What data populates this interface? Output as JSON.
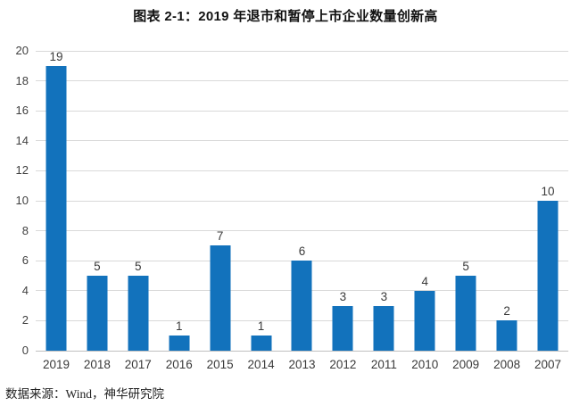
{
  "header": {
    "title": "图表 2-1：2019 年退市和暂停上市企业数量创新高"
  },
  "footer": {
    "source": "数据来源：Wind，神华研究院"
  },
  "chart_data": {
    "type": "bar",
    "title": "图表 2-1：2019 年退市和暂停上市企业数量创新高",
    "categories": [
      "2019",
      "2018",
      "2017",
      "2016",
      "2015",
      "2014",
      "2013",
      "2012",
      "2011",
      "2010",
      "2009",
      "2008",
      "2007"
    ],
    "values": [
      19,
      5,
      5,
      1,
      7,
      1,
      6,
      3,
      3,
      4,
      5,
      2,
      10
    ],
    "data_labels_shown": true,
    "xlabel": "",
    "ylabel": "",
    "ylim": [
      0,
      20
    ],
    "ytick_step": 2,
    "yticks": [
      0,
      2,
      4,
      6,
      8,
      10,
      12,
      14,
      16,
      18,
      20
    ],
    "grid": true,
    "legend": "none",
    "bar_color": "#1272bc",
    "gridline_color": "#d9d9d9",
    "axis_line_color": "#bfbfbf",
    "tick_label_color": "#3a3a3a",
    "source": "数据来源：Wind，神华研究院"
  }
}
